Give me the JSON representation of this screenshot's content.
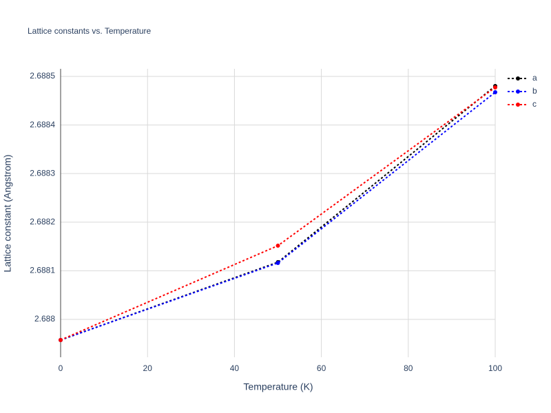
{
  "chart_data": {
    "type": "line",
    "title": "Lattice constants vs. Temperature",
    "x_label": "Temperature (K)",
    "y_label": "Lattice constant (Angstrom)",
    "x": [
      0,
      50,
      100
    ],
    "series": [
      {
        "name": "a",
        "color": "#000000",
        "values": [
          2.6879575,
          2.6881176,
          2.6884802
        ]
      },
      {
        "name": "b",
        "color": "#0000ff",
        "values": [
          2.6879575,
          2.6881161,
          2.6884674
        ]
      },
      {
        "name": "c",
        "color": "#ff0000",
        "values": [
          2.6879575,
          2.6881516,
          2.6884773
        ]
      }
    ],
    "xlim": [
      0,
      100
    ],
    "xticks": [
      0,
      20,
      40,
      60,
      80,
      100
    ],
    "ylim": [
      2.687922,
      2.6885156
    ],
    "yticks": [
      2.688,
      2.6881,
      2.6882,
      2.6883,
      2.6884,
      2.6885
    ],
    "grid": true,
    "legend": "right"
  }
}
